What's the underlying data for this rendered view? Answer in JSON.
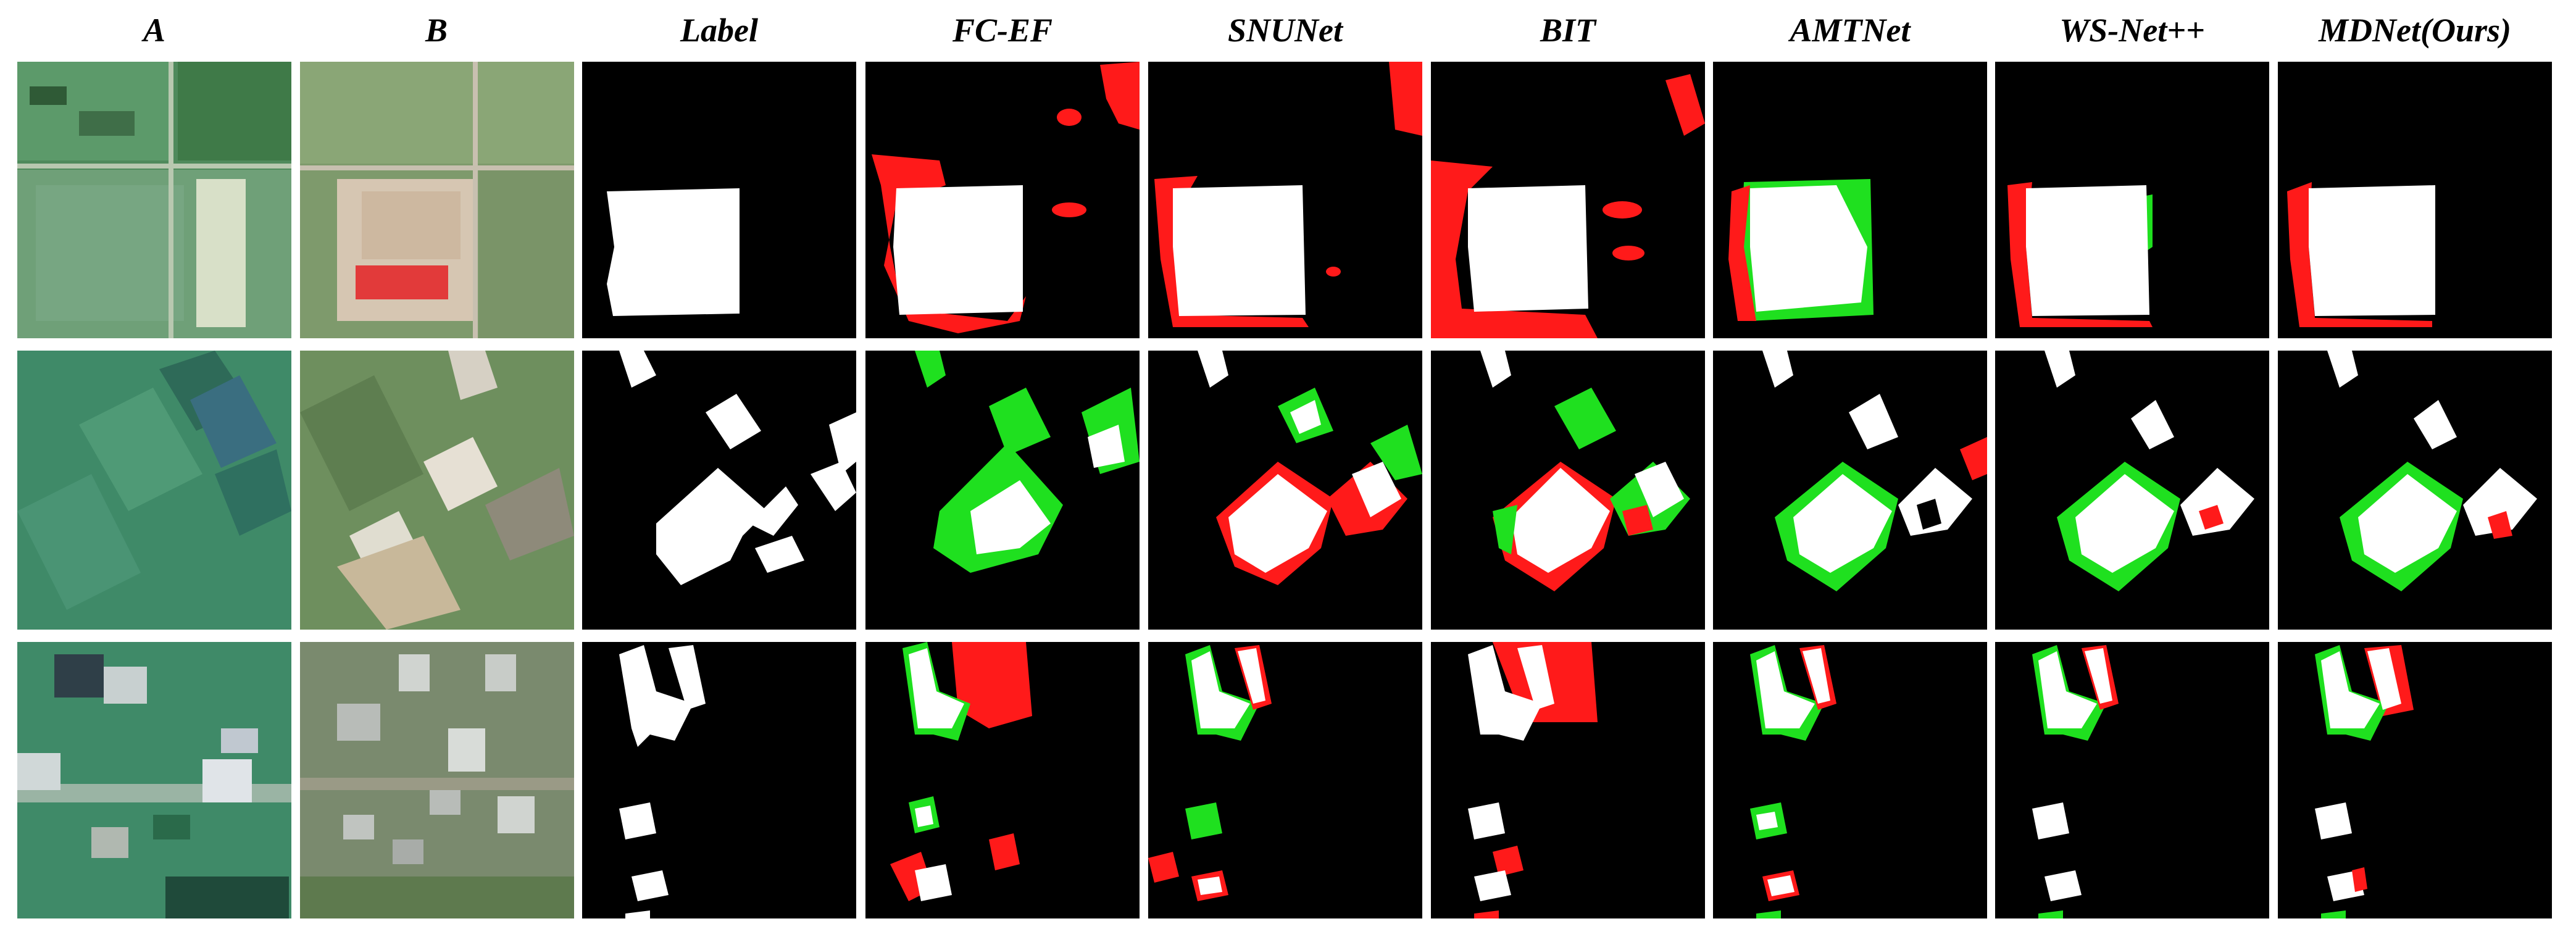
{
  "figure": {
    "columns": [
      {
        "key": "A",
        "label": "A"
      },
      {
        "key": "B",
        "label": "B"
      },
      {
        "key": "Label",
        "label": "Label"
      },
      {
        "key": "FC-EF",
        "label": "FC-EF"
      },
      {
        "key": "SNUNet",
        "label": "SNUNet"
      },
      {
        "key": "BIT",
        "label": "BIT"
      },
      {
        "key": "AMTNet",
        "label": "AMTNet"
      },
      {
        "key": "WS-Net++",
        "label": "WS-Net++"
      },
      {
        "key": "MDNet",
        "label": "MDNet(Ours)"
      }
    ],
    "rows": 3,
    "colors": {
      "background": "#000000",
      "change": "#ffffff",
      "false_positive": "#ff1a1a",
      "false_negative": "#1fe01f",
      "page": "#ffffff"
    }
  }
}
